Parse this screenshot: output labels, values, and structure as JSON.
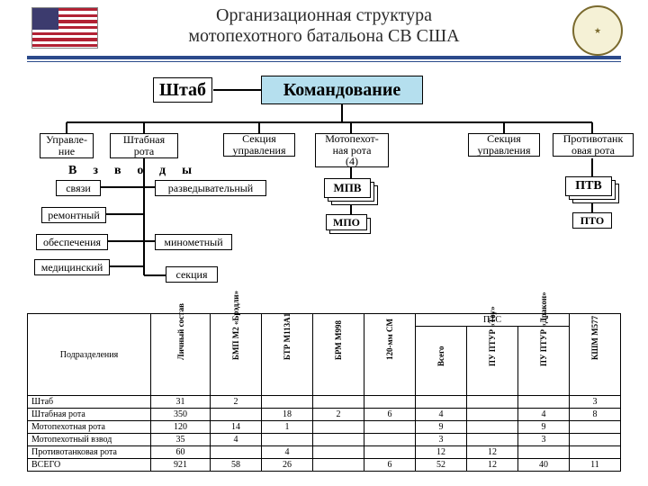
{
  "title_line1": "Организационная структура",
  "title_line2": "мотопехотного батальона СВ США",
  "colors": {
    "accent": "#2b4a8b",
    "cmd_fill": "#b5dfee",
    "box_border": "#000000",
    "bg": "#ffffff"
  },
  "boxes": {
    "hq": "Штаб",
    "command": "Командование",
    "upravlenie": "Управле-\nние",
    "hqcoy": "Штабная\nрота",
    "sec1": "Секция\nуправления",
    "motorcoy": "Мотопехот-\nная рота\n(4)",
    "sec2": "Секция\nуправления",
    "atcoy": "Противотанк\nовая рота",
    "platoons_label": "Взводы",
    "svyazi": "связи",
    "razved": "разведывательный",
    "remont": "ремонтный",
    "obes": "обеспечения",
    "med": "медицинский",
    "minomet": "минометный",
    "sekciya": "секция",
    "mpv": "МПВ",
    "mpo": "МПО",
    "ptv": "ПТВ",
    "pto": "ПТО"
  },
  "table": {
    "header_unit": "Подразделения",
    "group_pts": "ПТС",
    "cols": [
      "Личный состав",
      "БМП М2 «Брэдли»",
      "БТР М113А1",
      "БРМ М998",
      "120-мм СМ",
      "Всего",
      "ПУ ПТУР «Тоу»",
      "ПУ ПТУР «Дракон»",
      "КШМ М577"
    ],
    "rows": [
      {
        "label": "Штаб",
        "cells": [
          "31",
          "2",
          "",
          "",
          "",
          "",
          "",
          "",
          "3"
        ]
      },
      {
        "label": "Штабная рота",
        "cells": [
          "350",
          "",
          "18",
          "2",
          "6",
          "4",
          "",
          "4",
          "8"
        ]
      },
      {
        "label": "Мотопехотная рота",
        "cells": [
          "120",
          "14",
          "1",
          "",
          "",
          "9",
          "",
          "9",
          ""
        ]
      },
      {
        "label": "Мотопехотный взвод",
        "cells": [
          "35",
          "4",
          "",
          "",
          "",
          "3",
          "",
          "3",
          ""
        ]
      },
      {
        "label": "Противотанковая рота",
        "cells": [
          "60",
          "",
          "4",
          "",
          "",
          "12",
          "12",
          "",
          ""
        ]
      },
      {
        "label": "ВСЕГО",
        "cells": [
          "921",
          "58",
          "26",
          "",
          "6",
          "52",
          "12",
          "40",
          "11"
        ]
      }
    ]
  }
}
